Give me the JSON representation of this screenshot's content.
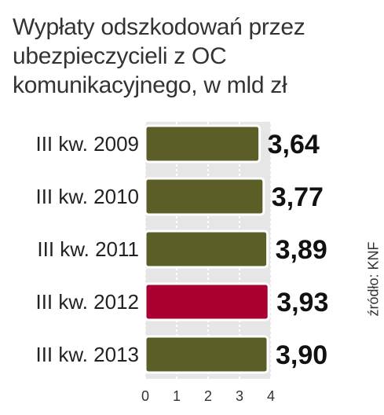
{
  "title_lines": [
    "Wypłaty odszkodowań przez",
    "ubezpieczycieli z OC",
    "komunikacyjnego, w mld zł"
  ],
  "source": "źródło: KNF",
  "colors": {
    "bar": "#5b5e26",
    "bar_highlight": "#a9002f",
    "panel": "#e6e6e6",
    "grid": "#ffffff"
  },
  "chart_data": {
    "type": "bar",
    "orientation": "horizontal",
    "title": "Wypłaty odszkodowań przez ubezpieczycieli z OC komunikacyjnego, w mld zł",
    "categories": [
      "III kw. 2009",
      "III kw. 2010",
      "III kw. 2011",
      "III kw. 2012",
      "III kw. 2013"
    ],
    "values": [
      3.64,
      3.77,
      3.89,
      3.93,
      3.9
    ],
    "value_labels": [
      "3,64",
      "3,77",
      "3,89",
      "3,93",
      "3,90"
    ],
    "highlight_index": 3,
    "xlim": [
      0,
      4
    ],
    "xticks": [
      "0",
      "1",
      "2",
      "3",
      "4"
    ],
    "grid": true
  }
}
